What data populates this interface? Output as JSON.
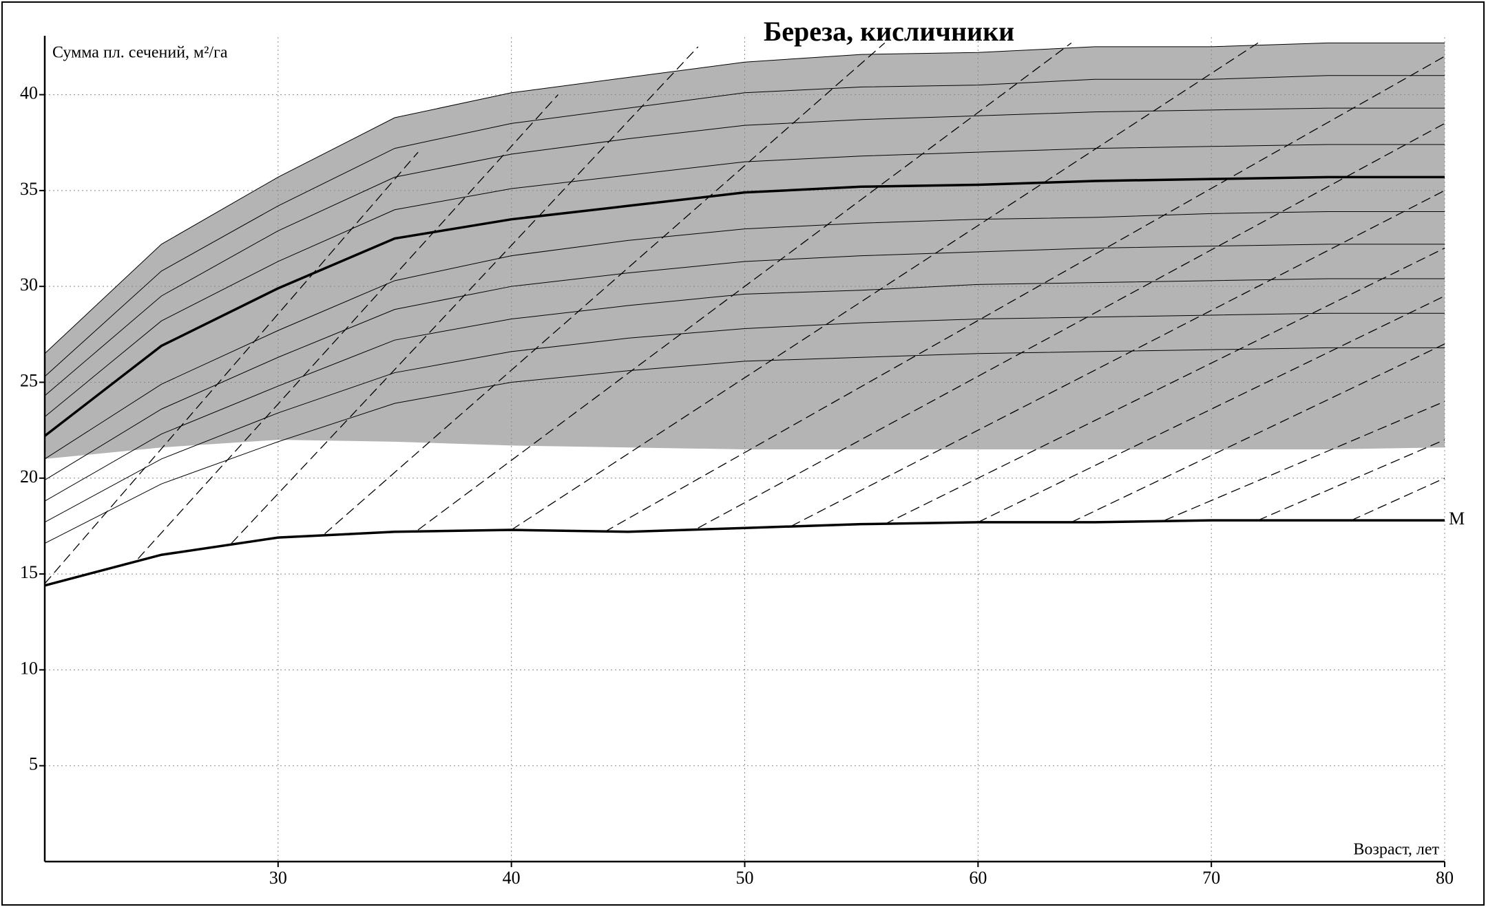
{
  "chart_data": {
    "type": "line",
    "title": "Береза, кисличники",
    "y_label": "Сумма пл. сечений, м²/га",
    "x_label": "Возраст, лет",
    "xlim": [
      20,
      80
    ],
    "ylim": [
      0,
      43
    ],
    "xticks": [
      30,
      40,
      50,
      60,
      70,
      80
    ],
    "yticks": [
      5,
      10,
      15,
      20,
      25,
      30,
      35,
      40
    ],
    "grid": true,
    "x": [
      20,
      25,
      30,
      35,
      40,
      45,
      50,
      55,
      60,
      65,
      70,
      75,
      80
    ],
    "band": {
      "color": "#b4b4b4",
      "lower": [
        21.0,
        21.6,
        22.0,
        21.9,
        21.7,
        21.6,
        21.5,
        21.5,
        21.5,
        21.5,
        21.5,
        21.5,
        21.6
      ],
      "upper": [
        26.5,
        32.2,
        35.7,
        38.8,
        40.1,
        40.9,
        41.7,
        42.1,
        42.2,
        42.5,
        42.5,
        42.7,
        42.7
      ]
    },
    "series": [
      {
        "color": "#000000",
        "width": 1,
        "values": [
          26.5,
          32.2,
          35.7,
          38.8,
          40.1,
          40.9,
          41.7,
          42.1,
          42.2,
          42.5,
          42.5,
          42.7,
          42.7
        ]
      },
      {
        "color": "#000000",
        "width": 1,
        "values": [
          25.3,
          30.8,
          34.2,
          37.2,
          38.5,
          39.3,
          40.1,
          40.4,
          40.5,
          40.8,
          40.8,
          41.0,
          41.0
        ]
      },
      {
        "color": "#000000",
        "width": 1,
        "values": [
          24.3,
          29.5,
          32.9,
          35.7,
          36.9,
          37.7,
          38.4,
          38.7,
          38.9,
          39.1,
          39.2,
          39.3,
          39.3
        ]
      },
      {
        "color": "#000000",
        "width": 1,
        "values": [
          23.2,
          28.2,
          31.3,
          34.0,
          35.1,
          35.8,
          36.5,
          36.8,
          37.0,
          37.2,
          37.3,
          37.4,
          37.4
        ]
      },
      {
        "color": "#000000",
        "width": 3.5,
        "values": [
          22.2,
          26.9,
          29.9,
          32.5,
          33.5,
          34.2,
          34.9,
          35.2,
          35.3,
          35.5,
          35.6,
          35.7,
          35.7
        ]
      },
      {
        "color": "#000000",
        "width": 1,
        "values": [
          21.0,
          24.9,
          27.7,
          30.3,
          31.6,
          32.4,
          33.0,
          33.3,
          33.5,
          33.6,
          33.8,
          33.9,
          33.9
        ]
      },
      {
        "color": "#000000",
        "width": 1,
        "values": [
          19.9,
          23.6,
          26.3,
          28.8,
          30.0,
          30.7,
          31.3,
          31.6,
          31.8,
          32.0,
          32.1,
          32.2,
          32.2
        ]
      },
      {
        "color": "#000000",
        "width": 1,
        "values": [
          18.8,
          22.3,
          24.8,
          27.2,
          28.3,
          29.0,
          29.6,
          29.8,
          30.1,
          30.2,
          30.3,
          30.4,
          30.4
        ]
      },
      {
        "color": "#000000",
        "width": 1,
        "values": [
          17.7,
          21.0,
          23.4,
          25.5,
          26.6,
          27.3,
          27.8,
          28.1,
          28.3,
          28.4,
          28.5,
          28.6,
          28.6
        ]
      },
      {
        "color": "#000000",
        "width": 1,
        "values": [
          16.6,
          19.7,
          21.9,
          23.9,
          25.0,
          25.6,
          26.1,
          26.3,
          26.5,
          26.6,
          26.7,
          26.8,
          26.8
        ]
      },
      {
        "color": "#000000",
        "width": 3.5,
        "label": "М",
        "values": [
          14.4,
          16.0,
          16.9,
          17.2,
          17.3,
          17.2,
          17.4,
          17.6,
          17.7,
          17.7,
          17.8,
          17.8,
          17.8
        ]
      }
    ],
    "dashed": [
      {
        "x": [
          20,
          36
        ],
        "values": [
          14.5,
          37.0
        ]
      },
      {
        "x": [
          24,
          42
        ],
        "values": [
          15.8,
          40.0
        ]
      },
      {
        "x": [
          28,
          48
        ],
        "values": [
          16.6,
          42.5
        ]
      },
      {
        "x": [
          32,
          56
        ],
        "values": [
          17.1,
          42.7
        ]
      },
      {
        "x": [
          36,
          64
        ],
        "values": [
          17.3,
          42.7
        ]
      },
      {
        "x": [
          40,
          72
        ],
        "values": [
          17.3,
          42.7
        ]
      },
      {
        "x": [
          44,
          80
        ],
        "values": [
          17.2,
          42.0
        ]
      },
      {
        "x": [
          48,
          80
        ],
        "values": [
          17.4,
          38.5
        ]
      },
      {
        "x": [
          52,
          80
        ],
        "values": [
          17.5,
          35.0
        ]
      },
      {
        "x": [
          56,
          80
        ],
        "values": [
          17.6,
          32.0
        ]
      },
      {
        "x": [
          60,
          80
        ],
        "values": [
          17.7,
          29.5
        ]
      },
      {
        "x": [
          64,
          80
        ],
        "values": [
          17.7,
          27.0
        ]
      },
      {
        "x": [
          68,
          80
        ],
        "values": [
          17.8,
          24.0
        ]
      },
      {
        "x": [
          72,
          80
        ],
        "values": [
          17.8,
          22.0
        ]
      },
      {
        "x": [
          76,
          80
        ],
        "values": [
          17.8,
          20.0
        ]
      }
    ]
  }
}
